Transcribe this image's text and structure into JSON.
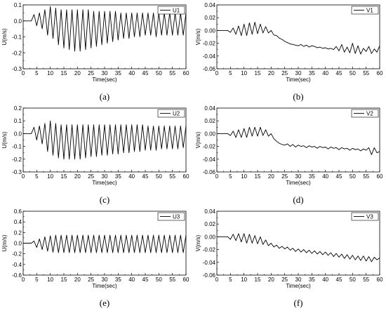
{
  "chart_data": [
    {
      "type": "line",
      "panel": "a",
      "caption": "(a)",
      "xlabel": "Time(sec)",
      "ylabel": "U(m/s)",
      "xlim": [
        0,
        60
      ],
      "ylim": [
        -0.3,
        0.1
      ],
      "xticks": [
        0,
        5,
        10,
        15,
        20,
        25,
        30,
        35,
        40,
        45,
        50,
        55,
        60
      ],
      "yticks": [
        -0.3,
        -0.2,
        -0.1,
        0.0,
        0.1
      ],
      "ytick_labels": [
        "-0.3",
        "-0.2",
        "-0.1",
        "0.0",
        "0.1"
      ],
      "legend_position": "top-right",
      "series": [
        {
          "name": "U1",
          "color": "#000000",
          "x": [
            0,
            1,
            2,
            3,
            4,
            5,
            6,
            7,
            8,
            9,
            10,
            11,
            12,
            13,
            14,
            15,
            16,
            17,
            18,
            19,
            20,
            21,
            22,
            23,
            24,
            25,
            26,
            27,
            28,
            29,
            30,
            31,
            32,
            33,
            34,
            35,
            36,
            37,
            38,
            39,
            40,
            41,
            42,
            43,
            44,
            45,
            46,
            47,
            48,
            49,
            50,
            51,
            52,
            53,
            54,
            55,
            56,
            57,
            58,
            59,
            60
          ],
          "y": [
            0.0,
            0.0,
            0.0,
            0.0,
            0.04,
            -0.03,
            0.05,
            -0.05,
            0.07,
            -0.09,
            0.09,
            -0.11,
            0.08,
            -0.15,
            0.07,
            -0.17,
            0.07,
            -0.18,
            0.07,
            -0.19,
            0.07,
            -0.19,
            0.07,
            -0.18,
            0.07,
            -0.17,
            0.06,
            -0.16,
            0.06,
            -0.15,
            0.06,
            -0.14,
            0.06,
            -0.13,
            0.06,
            -0.12,
            0.05,
            -0.11,
            0.05,
            -0.11,
            0.05,
            -0.1,
            0.05,
            -0.1,
            0.05,
            -0.09,
            0.05,
            -0.09,
            0.05,
            -0.1,
            0.05,
            -0.09,
            0.05,
            -0.09,
            0.05,
            -0.09,
            0.05,
            -0.09,
            0.05,
            -0.09,
            0.05
          ]
        }
      ]
    },
    {
      "type": "line",
      "panel": "b",
      "caption": "(b)",
      "xlabel": "Time(sec)",
      "ylabel": "V(m/s)",
      "xlim": [
        0,
        60
      ],
      "ylim": [
        -0.06,
        0.04
      ],
      "xticks": [
        0,
        5,
        10,
        15,
        20,
        25,
        30,
        35,
        40,
        45,
        50,
        55,
        60
      ],
      "yticks": [
        -0.06,
        -0.04,
        -0.02,
        0.0,
        0.02,
        0.04
      ],
      "ytick_labels": [
        "-0.06",
        "-0.04",
        "-0.02",
        "0.00",
        "0.02",
        "0.04"
      ],
      "legend_position": "top-right",
      "series": [
        {
          "name": "V1",
          "color": "#000000",
          "x": [
            0,
            1,
            2,
            3,
            4,
            5,
            6,
            7,
            8,
            9,
            10,
            11,
            12,
            13,
            14,
            15,
            16,
            17,
            18,
            19,
            20,
            21,
            22,
            23,
            24,
            25,
            26,
            27,
            28,
            29,
            30,
            31,
            32,
            33,
            34,
            35,
            36,
            37,
            38,
            39,
            40,
            41,
            42,
            43,
            44,
            45,
            46,
            47,
            48,
            49,
            50,
            51,
            52,
            53,
            54,
            55,
            56,
            57,
            58,
            59,
            60
          ],
          "y": [
            0.0,
            0.0,
            0.0,
            0.0,
            0.0,
            -0.003,
            0.004,
            -0.006,
            0.007,
            -0.008,
            0.01,
            -0.008,
            0.012,
            -0.006,
            0.013,
            -0.005,
            0.01,
            -0.004,
            0.006,
            -0.004,
            0.0,
            -0.007,
            -0.008,
            -0.012,
            -0.014,
            -0.017,
            -0.019,
            -0.021,
            -0.022,
            -0.023,
            -0.024,
            -0.022,
            -0.025,
            -0.023,
            -0.026,
            -0.024,
            -0.025,
            -0.027,
            -0.026,
            -0.028,
            -0.027,
            -0.029,
            -0.028,
            -0.03,
            -0.025,
            -0.032,
            -0.022,
            -0.034,
            -0.026,
            -0.035,
            -0.02,
            -0.036,
            -0.024,
            -0.037,
            -0.028,
            -0.033,
            -0.025,
            -0.036,
            -0.029,
            -0.034,
            -0.024
          ]
        }
      ]
    },
    {
      "type": "line",
      "panel": "c",
      "caption": "(c)",
      "xlabel": "Time(sec)",
      "ylabel": "U(m/s)",
      "xlim": [
        0,
        60
      ],
      "ylim": [
        -0.3,
        0.2
      ],
      "xticks": [
        0,
        5,
        10,
        15,
        20,
        25,
        30,
        35,
        40,
        45,
        50,
        55,
        60
      ],
      "yticks": [
        -0.3,
        -0.2,
        -0.1,
        0.0,
        0.1,
        0.2
      ],
      "ytick_labels": [
        "-0.3",
        "-0.2",
        "-0.1",
        "0.0",
        "0.1",
        "0.2"
      ],
      "legend_position": "top-right",
      "series": [
        {
          "name": "U2",
          "color": "#000000",
          "x": [
            0,
            1,
            2,
            3,
            4,
            5,
            6,
            7,
            8,
            9,
            10,
            11,
            12,
            13,
            14,
            15,
            16,
            17,
            18,
            19,
            20,
            21,
            22,
            23,
            24,
            25,
            26,
            27,
            28,
            29,
            30,
            31,
            32,
            33,
            34,
            35,
            36,
            37,
            38,
            39,
            40,
            41,
            42,
            43,
            44,
            45,
            46,
            47,
            48,
            49,
            50,
            51,
            52,
            53,
            54,
            55,
            56,
            57,
            58,
            59,
            60
          ],
          "y": [
            0.0,
            0.0,
            0.0,
            0.0,
            0.05,
            -0.05,
            0.06,
            -0.08,
            0.08,
            -0.14,
            0.1,
            -0.17,
            0.08,
            -0.19,
            0.07,
            -0.2,
            0.07,
            -0.2,
            0.07,
            -0.2,
            0.07,
            -0.2,
            0.07,
            -0.19,
            0.07,
            -0.18,
            0.07,
            -0.18,
            0.07,
            -0.17,
            0.07,
            -0.17,
            0.07,
            -0.16,
            0.07,
            -0.16,
            0.07,
            -0.15,
            0.07,
            -0.15,
            0.07,
            -0.14,
            0.07,
            -0.14,
            0.07,
            -0.13,
            0.06,
            -0.13,
            0.06,
            -0.13,
            0.06,
            -0.12,
            0.06,
            -0.12,
            0.06,
            -0.12,
            0.06,
            -0.12,
            0.06,
            -0.11,
            0.06
          ]
        }
      ]
    },
    {
      "type": "line",
      "panel": "d",
      "caption": "(d)",
      "xlabel": "Time(sec)",
      "ylabel": "V(m/s)",
      "xlim": [
        0,
        60
      ],
      "ylim": [
        -0.06,
        0.04
      ],
      "xticks": [
        0,
        5,
        10,
        15,
        20,
        25,
        30,
        35,
        40,
        45,
        50,
        55,
        60
      ],
      "yticks": [
        -0.06,
        -0.04,
        -0.02,
        0.0,
        0.02,
        0.04
      ],
      "ytick_labels": [
        "-0.06",
        "-0.04",
        "-0.02",
        "0.00",
        "0.02",
        "0.04"
      ],
      "legend_position": "top-right",
      "series": [
        {
          "name": "V2",
          "color": "#000000",
          "x": [
            0,
            1,
            2,
            3,
            4,
            5,
            6,
            7,
            8,
            9,
            10,
            11,
            12,
            13,
            14,
            15,
            16,
            17,
            18,
            19,
            20,
            21,
            22,
            23,
            24,
            25,
            26,
            27,
            28,
            29,
            30,
            31,
            32,
            33,
            34,
            35,
            36,
            37,
            38,
            39,
            40,
            41,
            42,
            43,
            44,
            45,
            46,
            47,
            48,
            49,
            50,
            51,
            52,
            53,
            54,
            55,
            56,
            57,
            58,
            59,
            60
          ],
          "y": [
            0.0,
            0.0,
            0.0,
            0.0,
            0.0,
            -0.003,
            0.004,
            -0.006,
            0.006,
            -0.006,
            0.008,
            -0.006,
            0.01,
            -0.004,
            0.01,
            -0.004,
            0.01,
            -0.003,
            0.006,
            -0.004,
            0.0,
            -0.008,
            -0.012,
            -0.015,
            -0.017,
            -0.018,
            -0.016,
            -0.02,
            -0.017,
            -0.021,
            -0.018,
            -0.02,
            -0.019,
            -0.022,
            -0.019,
            -0.021,
            -0.02,
            -0.023,
            -0.02,
            -0.022,
            -0.021,
            -0.024,
            -0.021,
            -0.023,
            -0.022,
            -0.025,
            -0.022,
            -0.024,
            -0.023,
            -0.026,
            -0.023,
            -0.025,
            -0.024,
            -0.027,
            -0.024,
            -0.026,
            -0.022,
            -0.033,
            -0.022,
            -0.03,
            -0.028
          ]
        }
      ]
    },
    {
      "type": "line",
      "panel": "e",
      "caption": "(e)",
      "xlabel": "Time(sec)",
      "ylabel": "U(m/s)",
      "xlim": [
        0,
        60
      ],
      "ylim": [
        -0.6,
        0.6
      ],
      "xticks": [
        0,
        5,
        10,
        15,
        20,
        25,
        30,
        35,
        40,
        45,
        50,
        55,
        60
      ],
      "yticks": [
        -0.6,
        -0.4,
        -0.2,
        0.0,
        0.2,
        0.4,
        0.6
      ],
      "ytick_labels": [
        "-0.6",
        "-0.4",
        "-0.2",
        "0.0",
        "0.2",
        "0.4",
        "0.6"
      ],
      "legend_position": "top-right",
      "series": [
        {
          "name": "U3",
          "color": "#000000",
          "x": [
            0,
            1,
            2,
            3,
            4,
            5,
            6,
            7,
            8,
            9,
            10,
            11,
            12,
            13,
            14,
            15,
            16,
            17,
            18,
            19,
            20,
            21,
            22,
            23,
            24,
            25,
            26,
            27,
            28,
            29,
            30,
            31,
            32,
            33,
            34,
            35,
            36,
            37,
            38,
            39,
            40,
            41,
            42,
            43,
            44,
            45,
            46,
            47,
            48,
            49,
            50,
            51,
            52,
            53,
            54,
            55,
            56,
            57,
            58,
            59,
            60
          ],
          "y": [
            0.0,
            0.0,
            0.0,
            0.0,
            0.04,
            -0.08,
            0.08,
            -0.12,
            0.12,
            -0.15,
            0.14,
            -0.17,
            0.15,
            -0.18,
            0.15,
            -0.18,
            0.15,
            -0.18,
            0.15,
            -0.18,
            0.15,
            -0.18,
            0.15,
            -0.18,
            0.15,
            -0.18,
            0.15,
            -0.18,
            0.15,
            -0.18,
            0.15,
            -0.18,
            0.15,
            -0.18,
            0.15,
            -0.18,
            0.15,
            -0.18,
            0.15,
            -0.18,
            0.15,
            -0.18,
            0.15,
            -0.18,
            0.15,
            -0.18,
            0.15,
            -0.18,
            0.15,
            -0.18,
            0.15,
            -0.18,
            0.15,
            -0.18,
            0.15,
            -0.18,
            0.15,
            -0.18,
            0.15,
            -0.18,
            0.15
          ]
        }
      ]
    },
    {
      "type": "line",
      "panel": "f",
      "caption": "(f)",
      "xlabel": "Time(sec)",
      "ylabel": "V(m/s)",
      "xlim": [
        0,
        60
      ],
      "ylim": [
        -0.06,
        0.04
      ],
      "xticks": [
        0,
        5,
        10,
        15,
        20,
        25,
        30,
        35,
        40,
        45,
        50,
        55,
        60
      ],
      "yticks": [
        -0.06,
        -0.04,
        -0.02,
        0.0,
        0.02,
        0.04
      ],
      "ytick_labels": [
        "-0.06",
        "-0.04",
        "-0.02",
        "0.00",
        "0.02",
        "0.04"
      ],
      "legend_position": "top-right",
      "series": [
        {
          "name": "V3",
          "color": "#000000",
          "x": [
            0,
            1,
            2,
            3,
            4,
            5,
            6,
            7,
            8,
            9,
            10,
            11,
            12,
            13,
            14,
            15,
            16,
            17,
            18,
            19,
            20,
            21,
            22,
            23,
            24,
            25,
            26,
            27,
            28,
            29,
            30,
            31,
            32,
            33,
            34,
            35,
            36,
            37,
            38,
            39,
            40,
            41,
            42,
            43,
            44,
            45,
            46,
            47,
            48,
            49,
            50,
            51,
            52,
            53,
            54,
            55,
            56,
            57,
            58,
            59,
            60
          ],
          "y": [
            0.0,
            0.0,
            0.0,
            0.0,
            0.0,
            -0.004,
            0.004,
            -0.006,
            0.005,
            -0.008,
            0.005,
            -0.01,
            0.004,
            -0.01,
            0.002,
            -0.011,
            0.0,
            -0.012,
            -0.005,
            -0.014,
            -0.01,
            -0.016,
            -0.013,
            -0.018,
            -0.015,
            -0.019,
            -0.016,
            -0.021,
            -0.018,
            -0.023,
            -0.019,
            -0.024,
            -0.02,
            -0.025,
            -0.021,
            -0.026,
            -0.022,
            -0.027,
            -0.023,
            -0.028,
            -0.024,
            -0.029,
            -0.025,
            -0.031,
            -0.026,
            -0.032,
            -0.027,
            -0.034,
            -0.028,
            -0.035,
            -0.029,
            -0.036,
            -0.03,
            -0.037,
            -0.03,
            -0.038,
            -0.031,
            -0.039,
            -0.032,
            -0.036,
            -0.033
          ]
        }
      ]
    }
  ]
}
